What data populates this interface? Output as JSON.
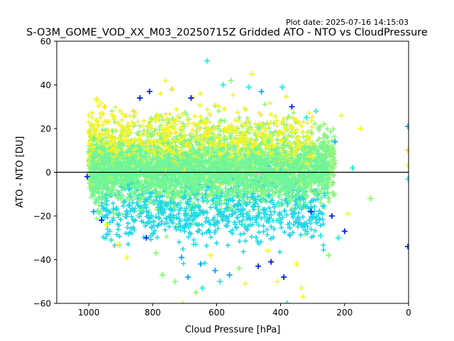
{
  "plot_date": "Plot date: 2025-07-16 14:15:03",
  "chart_data": {
    "type": "scatter",
    "title": "S-O3M_GOME_VOD_XX_M03_20250715Z Gridded ATO - NTO vs CloudPressure",
    "xlabel": "Cloud Pressure [hPa]",
    "ylabel": "ATO - NTO [DU]",
    "xlim": [
      1100,
      0
    ],
    "ylim": [
      -60,
      60
    ],
    "x_ticks": [
      1000,
      800,
      600,
      400,
      200,
      0
    ],
    "y_ticks": [
      -60,
      -40,
      -20,
      0,
      20,
      40,
      60
    ],
    "x_tick_labels": [
      "1000",
      "800",
      "600",
      "400",
      "200",
      "0"
    ],
    "y_tick_labels": [
      "−60",
      "−40",
      "−20",
      "0",
      "20",
      "40",
      "60"
    ],
    "marker": "+",
    "reference_line_y": 0,
    "grid": false,
    "colors": [
      "#0022ee",
      "#00aaff",
      "#22eedd",
      "#88ff66",
      "#eeff22",
      "#ffdd00"
    ],
    "points": [
      {
        "x": 1005,
        "y": -2,
        "c": 0
      },
      {
        "x": 990,
        "y": 25,
        "c": 4
      },
      {
        "x": 985,
        "y": -18,
        "c": 1
      },
      {
        "x": 975,
        "y": 33,
        "c": 4
      },
      {
        "x": 960,
        "y": -22,
        "c": 0
      },
      {
        "x": 950,
        "y": 30,
        "c": 5
      },
      {
        "x": 945,
        "y": -24,
        "c": 4
      },
      {
        "x": 930,
        "y": -31,
        "c": 2
      },
      {
        "x": 905,
        "y": -33,
        "c": 4
      },
      {
        "x": 880,
        "y": -39,
        "c": 4
      },
      {
        "x": 860,
        "y": 28,
        "c": 5
      },
      {
        "x": 840,
        "y": 34,
        "c": 0
      },
      {
        "x": 810,
        "y": 37,
        "c": 0
      },
      {
        "x": 820,
        "y": -30,
        "c": 0
      },
      {
        "x": 790,
        "y": -37,
        "c": 3
      },
      {
        "x": 770,
        "y": -47,
        "c": 3
      },
      {
        "x": 760,
        "y": 42,
        "c": 4
      },
      {
        "x": 740,
        "y": 38,
        "c": 5
      },
      {
        "x": 730,
        "y": -50,
        "c": 3
      },
      {
        "x": 710,
        "y": -39,
        "c": 1
      },
      {
        "x": 705,
        "y": -60,
        "c": 4
      },
      {
        "x": 690,
        "y": -48,
        "c": 1
      },
      {
        "x": 680,
        "y": 34,
        "c": 0
      },
      {
        "x": 665,
        "y": -55,
        "c": 3
      },
      {
        "x": 650,
        "y": -42,
        "c": 1
      },
      {
        "x": 645,
        "y": -53,
        "c": 2
      },
      {
        "x": 630,
        "y": 51,
        "c": 2
      },
      {
        "x": 620,
        "y": -38,
        "c": 4
      },
      {
        "x": 605,
        "y": -45,
        "c": 1
      },
      {
        "x": 590,
        "y": -50,
        "c": 2
      },
      {
        "x": 580,
        "y": 40,
        "c": 2
      },
      {
        "x": 560,
        "y": -47,
        "c": 1
      },
      {
        "x": 555,
        "y": 42,
        "c": 3
      },
      {
        "x": 530,
        "y": -44,
        "c": 3
      },
      {
        "x": 510,
        "y": -51,
        "c": 4
      },
      {
        "x": 500,
        "y": 39,
        "c": 2
      },
      {
        "x": 490,
        "y": 45,
        "c": 4
      },
      {
        "x": 470,
        "y": -43,
        "c": 0
      },
      {
        "x": 460,
        "y": 37,
        "c": 1
      },
      {
        "x": 440,
        "y": -36,
        "c": 4
      },
      {
        "x": 430,
        "y": -41,
        "c": 0
      },
      {
        "x": 410,
        "y": -50,
        "c": 4
      },
      {
        "x": 390,
        "y": -48,
        "c": 0
      },
      {
        "x": 395,
        "y": 39,
        "c": 2
      },
      {
        "x": 380,
        "y": -60,
        "c": 2
      },
      {
        "x": 365,
        "y": 30,
        "c": 0
      },
      {
        "x": 350,
        "y": -42,
        "c": 4
      },
      {
        "x": 335,
        "y": -53,
        "c": 4
      },
      {
        "x": 330,
        "y": -57,
        "c": 4
      },
      {
        "x": 320,
        "y": 25,
        "c": 2
      },
      {
        "x": 305,
        "y": -18,
        "c": 0
      },
      {
        "x": 290,
        "y": 28,
        "c": 2
      },
      {
        "x": 275,
        "y": -29,
        "c": 2
      },
      {
        "x": 265,
        "y": 22,
        "c": 3
      },
      {
        "x": 250,
        "y": -38,
        "c": 3
      },
      {
        "x": 240,
        "y": -20,
        "c": 0
      },
      {
        "x": 230,
        "y": 14,
        "c": 1
      },
      {
        "x": 220,
        "y": -30,
        "c": 2
      },
      {
        "x": 210,
        "y": 26,
        "c": 4
      },
      {
        "x": 200,
        "y": -27,
        "c": 0
      },
      {
        "x": 190,
        "y": -19,
        "c": 4
      },
      {
        "x": 175,
        "y": 2,
        "c": 2
      },
      {
        "x": 150,
        "y": 20,
        "c": 4
      },
      {
        "x": 120,
        "y": -12,
        "c": 3
      },
      {
        "x": 2,
        "y": 21,
        "c": 1
      },
      {
        "x": 2,
        "y": 10,
        "c": 5
      },
      {
        "x": 2,
        "y": 3,
        "c": 4
      },
      {
        "x": 2,
        "y": -3,
        "c": 2
      },
      {
        "x": 2,
        "y": -34,
        "c": 0
      }
    ]
  }
}
